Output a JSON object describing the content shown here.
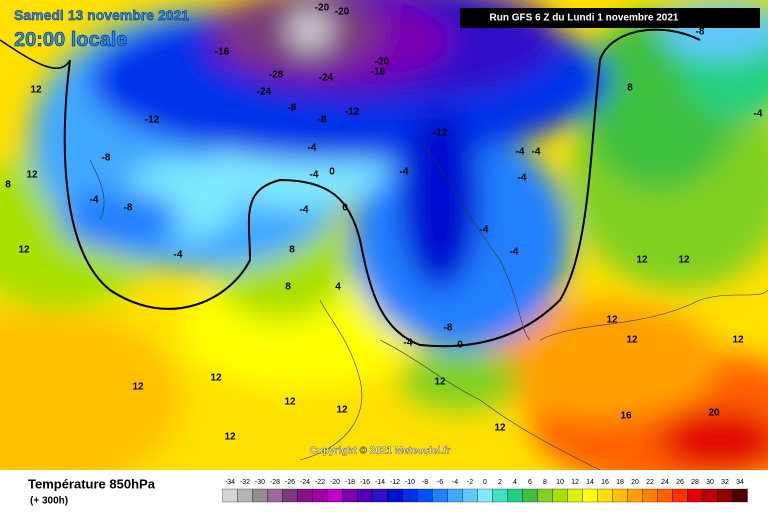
{
  "header": {
    "date": "Samedi 13 novembre 2021",
    "time": "20:00 locale",
    "run": "Run GFS 6 Z du Lundi 1 novembre 2021"
  },
  "copyright": "Copyright © 2021 Meteociel.fr",
  "footer": {
    "title": "Température 850hPa",
    "lead": "(+ 300h)"
  },
  "scale": {
    "values": [
      -34,
      -32,
      -30,
      -28,
      -26,
      -24,
      -22,
      -20,
      -18,
      -16,
      -14,
      -12,
      -10,
      -8,
      -6,
      -4,
      -2,
      0,
      2,
      4,
      6,
      8,
      10,
      12,
      14,
      16,
      18,
      20,
      22,
      24,
      26,
      28,
      30,
      32,
      34
    ],
    "colors": [
      "#d4d4d4",
      "#b4b4b4",
      "#968a96",
      "#9a6a9a",
      "#7a3a7a",
      "#8a108a",
      "#a000a8",
      "#c000c8",
      "#7a00b0",
      "#5000b8",
      "#3010c8",
      "#0010d0",
      "#0030e8",
      "#0050ff",
      "#2080ff",
      "#40a8ff",
      "#60c8ff",
      "#80e8ff",
      "#40e0c0",
      "#20d080",
      "#40c040",
      "#80d020",
      "#a8e000",
      "#e0f000",
      "#ffff00",
      "#ffe000",
      "#ffc000",
      "#ffa000",
      "#ff8000",
      "#ff6000",
      "#ff3000",
      "#e00000",
      "#c00000",
      "#900000",
      "#500000"
    ]
  },
  "contour_labels": [
    -20,
    -20,
    -16,
    -28,
    -24,
    -24,
    -20,
    -16,
    -12,
    -8,
    -8,
    -12,
    -12,
    -8,
    -4,
    -8,
    -4,
    -4,
    -4,
    0,
    -4,
    0,
    -4,
    -4,
    -4,
    -4,
    -4,
    -4,
    -8,
    -4,
    0,
    8,
    8,
    4,
    12,
    12,
    12,
    8,
    8,
    12,
    12,
    12,
    12,
    12,
    12,
    12,
    12,
    12,
    16,
    20,
    12,
    12,
    12,
    -8,
    -4
  ]
}
